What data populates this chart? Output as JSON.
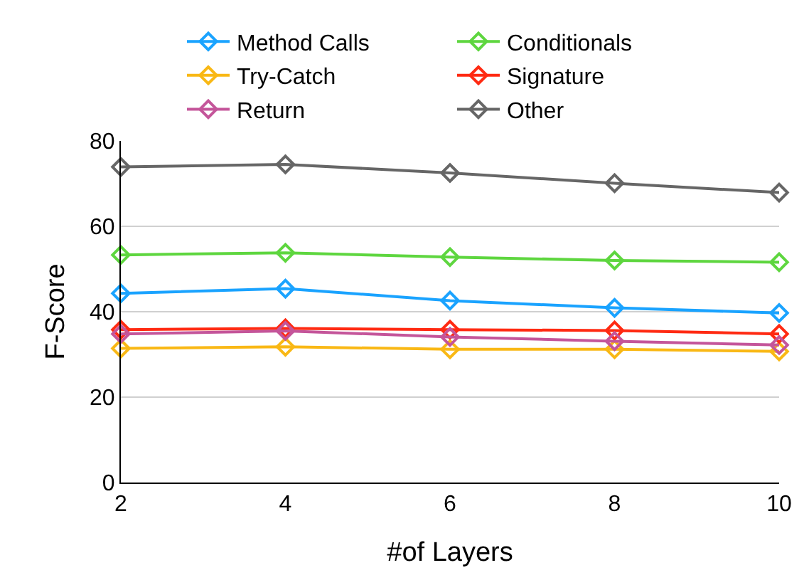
{
  "chart_data": {
    "type": "line",
    "xlabel": "#of Layers",
    "ylabel": "F-Score",
    "x": [
      2,
      4,
      6,
      8,
      10
    ],
    "series": [
      {
        "name": "Method Calls",
        "color": "#1aa3ff",
        "values": [
          44.3,
          45.4,
          42.6,
          40.9,
          39.7
        ]
      },
      {
        "name": "Conditionals",
        "color": "#5ed63f",
        "values": [
          53.3,
          53.8,
          52.8,
          52.0,
          51.6
        ]
      },
      {
        "name": "Try-Catch",
        "color": "#f9b815",
        "values": [
          31.4,
          31.8,
          31.2,
          31.2,
          30.7
        ]
      },
      {
        "name": "Signature",
        "color": "#ff2a12",
        "values": [
          35.8,
          36.1,
          35.8,
          35.6,
          34.8
        ]
      },
      {
        "name": "Return",
        "color": "#c4559a",
        "values": [
          34.8,
          35.5,
          34.1,
          33.1,
          32.2
        ]
      },
      {
        "name": "Other",
        "color": "#666666",
        "values": [
          73.9,
          74.5,
          72.5,
          70.1,
          67.9
        ]
      }
    ],
    "xlim": [
      2,
      10
    ],
    "xticks": [
      2,
      4,
      6,
      8,
      10
    ],
    "ylim": [
      0,
      80
    ],
    "yticks": [
      0,
      20,
      40,
      60,
      80
    ],
    "grid": "y",
    "legend": "top",
    "marker": "diamond",
    "line_style": "solid"
  }
}
